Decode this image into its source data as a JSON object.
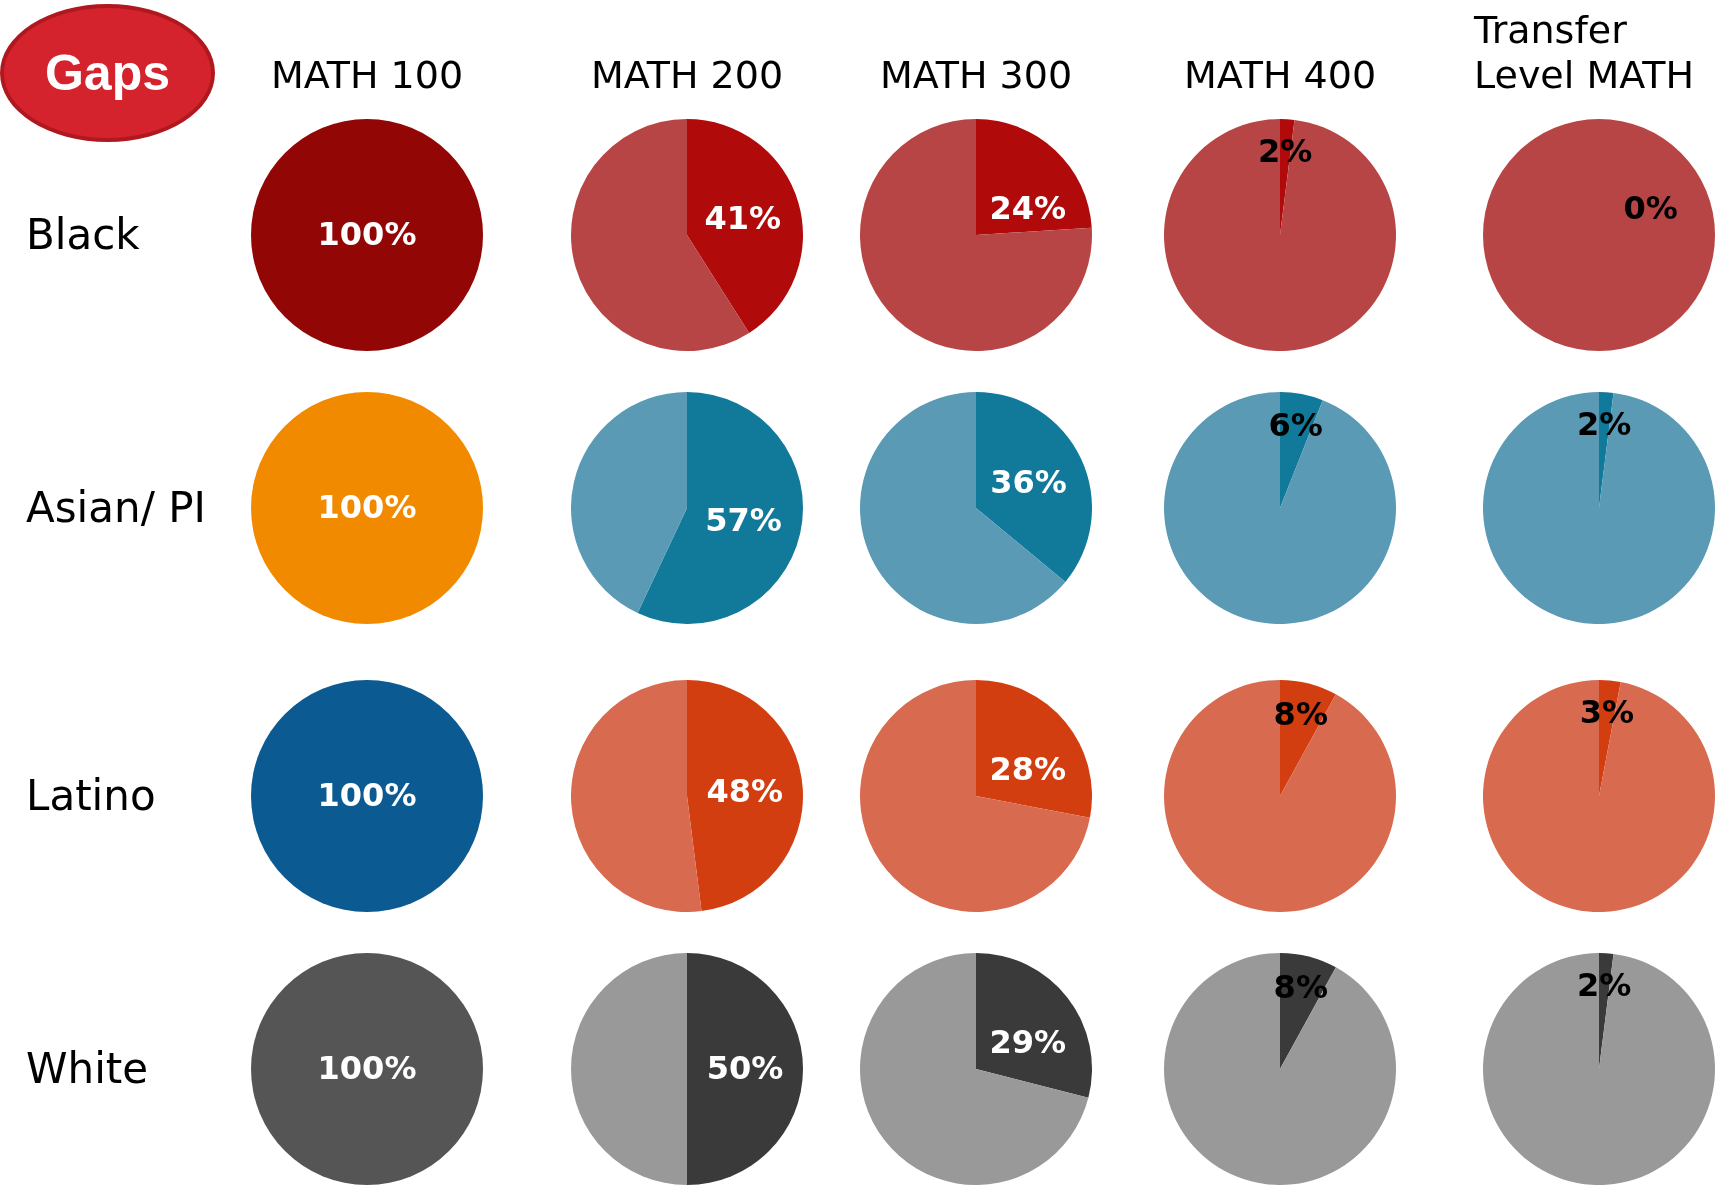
{
  "chart_data": [
    {
      "type": "other",
      "title": "Gaps"
    },
    {
      "type": "pie",
      "title": "MATH 100",
      "ylabel": "Black",
      "categories": [
        null
      ],
      "values": [
        100
      ],
      "colors": [
        "#920606"
      ],
      "value_labels": [
        "100%"
      ]
    },
    {
      "type": "pie",
      "title": "MATH 200",
      "categories": [
        null,
        null
      ],
      "values": [
        41,
        59
      ],
      "colors": [
        "#b00a0a",
        "#b84545"
      ],
      "value_labels": [
        "41%",
        null
      ]
    },
    {
      "type": "pie",
      "title": "MATH 300",
      "categories": [
        null,
        null
      ],
      "values": [
        24,
        76
      ],
      "colors": [
        "#b00a0a",
        "#b84545"
      ],
      "value_labels": [
        "24%",
        null
      ]
    },
    {
      "type": "pie",
      "title": "MATH 400",
      "categories": [
        null,
        null
      ],
      "values": [
        2,
        98
      ],
      "colors": [
        "#b00a0a",
        "#b84545"
      ],
      "value_labels": [
        "2%",
        null
      ]
    },
    {
      "type": "pie",
      "title": "Transfer Level MATH",
      "categories": [
        null,
        null
      ],
      "values": [
        0,
        100
      ],
      "colors": [
        "#b00a0a",
        "#b84545"
      ],
      "value_labels": [
        "0%",
        null
      ]
    },
    {
      "type": "pie",
      "ylabel": "Asian/ PI",
      "categories": [
        null
      ],
      "values": [
        100
      ],
      "colors": [
        "#f28a00"
      ],
      "value_labels": [
        "100%"
      ]
    },
    {
      "type": "pie",
      "categories": [
        null,
        null
      ],
      "values": [
        57,
        43
      ],
      "colors": [
        "#11799a",
        "#5a9ab5"
      ],
      "value_labels": [
        "57%",
        null
      ]
    },
    {
      "type": "pie",
      "categories": [
        null,
        null
      ],
      "values": [
        36,
        64
      ],
      "colors": [
        "#11799a",
        "#5a9ab5"
      ],
      "value_labels": [
        "36%",
        null
      ]
    },
    {
      "type": "pie",
      "categories": [
        null,
        null
      ],
      "values": [
        6,
        94
      ],
      "colors": [
        "#11799a",
        "#5a9ab5"
      ],
      "value_labels": [
        "6%",
        null
      ]
    },
    {
      "type": "pie",
      "categories": [
        null,
        null
      ],
      "values": [
        2,
        98
      ],
      "colors": [
        "#11799a",
        "#5a9ab5"
      ],
      "value_labels": [
        "2%",
        null
      ]
    },
    {
      "type": "pie",
      "ylabel": "Latino",
      "categories": [
        null
      ],
      "values": [
        100
      ],
      "colors": [
        "#0b5a91"
      ],
      "value_labels": [
        "100%"
      ]
    },
    {
      "type": "pie",
      "categories": [
        null,
        null
      ],
      "values": [
        48,
        52
      ],
      "colors": [
        "#d23e0f",
        "#d86a50"
      ],
      "value_labels": [
        "48%",
        null
      ]
    },
    {
      "type": "pie",
      "categories": [
        null,
        null
      ],
      "values": [
        28,
        72
      ],
      "colors": [
        "#d23e0f",
        "#d86a50"
      ],
      "value_labels": [
        "28%",
        null
      ]
    },
    {
      "type": "pie",
      "categories": [
        null,
        null
      ],
      "values": [
        8,
        92
      ],
      "colors": [
        "#d23e0f",
        "#d86a50"
      ],
      "value_labels": [
        "8%",
        null
      ]
    },
    {
      "type": "pie",
      "categories": [
        null,
        null
      ],
      "values": [
        3,
        97
      ],
      "colors": [
        "#d23e0f",
        "#d86a50"
      ],
      "value_labels": [
        "3%",
        null
      ]
    },
    {
      "type": "pie",
      "ylabel": "White",
      "categories": [
        null
      ],
      "values": [
        100
      ],
      "colors": [
        "#555555"
      ],
      "value_labels": [
        "100%"
      ]
    },
    {
      "type": "pie",
      "categories": [
        null,
        null
      ],
      "values": [
        50,
        50
      ],
      "colors": [
        "#3a3a3a",
        "#999999"
      ],
      "value_labels": [
        "50%",
        null
      ]
    },
    {
      "type": "pie",
      "categories": [
        null,
        null
      ],
      "values": [
        29,
        71
      ],
      "colors": [
        "#3a3a3a",
        "#999999"
      ],
      "value_labels": [
        "29%",
        null
      ]
    },
    {
      "type": "pie",
      "categories": [
        null,
        null
      ],
      "values": [
        8,
        92
      ],
      "colors": [
        "#3a3a3a",
        "#999999"
      ],
      "value_labels": [
        "8%",
        null
      ]
    },
    {
      "type": "pie",
      "categories": [
        null,
        null
      ],
      "values": [
        2,
        98
      ],
      "colors": [
        "#3a3a3a",
        "#999999"
      ],
      "value_labels": [
        "2%",
        null
      ]
    }
  ]
}
